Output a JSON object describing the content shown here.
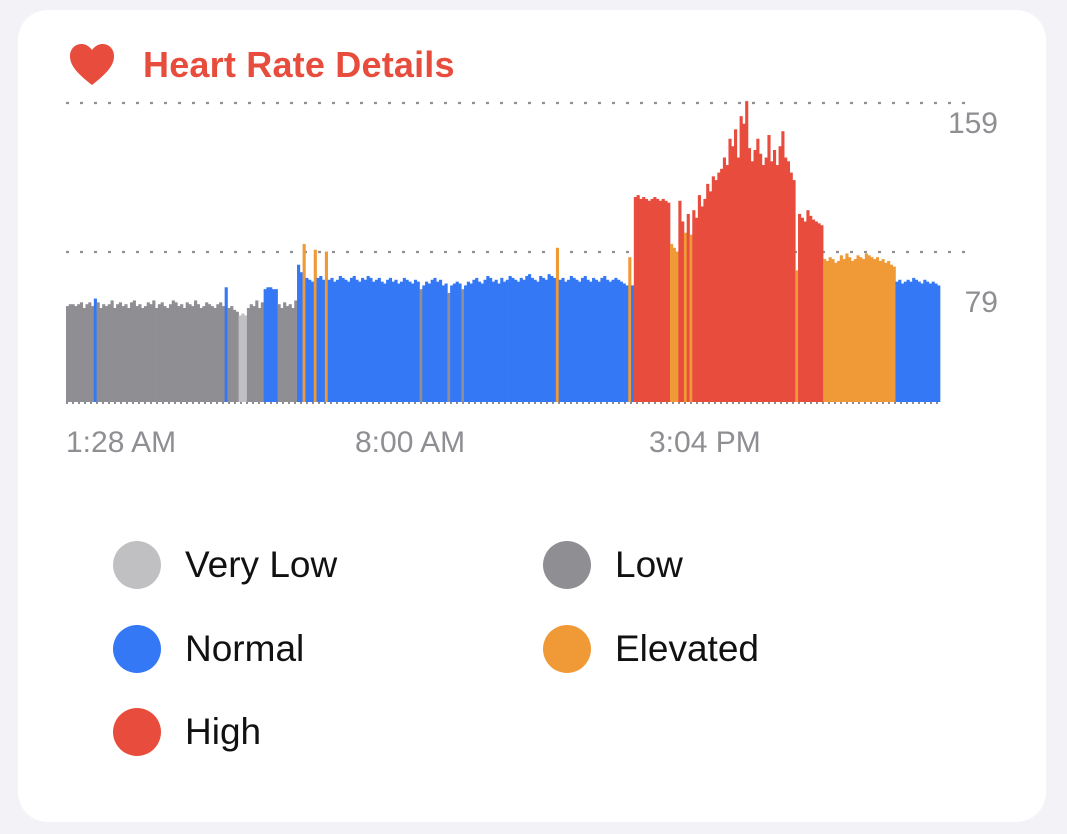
{
  "card": {
    "title": "Heart Rate Details"
  },
  "legend": [
    {
      "label": "Very Low",
      "color": "#c0c0c3",
      "key": "very_low"
    },
    {
      "label": "Low",
      "color": "#8e8e93",
      "key": "low"
    },
    {
      "label": "Normal",
      "color": "#3478f6",
      "key": "normal"
    },
    {
      "label": "Elevated",
      "color": "#f09a37",
      "key": "elevated"
    },
    {
      "label": "High",
      "color": "#e84c3d",
      "key": "high"
    }
  ],
  "chart_data": {
    "type": "bar",
    "title": "Heart Rate Details",
    "x_tick_labels": [
      "1:28 AM",
      "8:00 AM",
      "3:04 PM"
    ],
    "y_tick_labels": [
      "159",
      "79"
    ],
    "y_gridlines": [
      159,
      79
    ],
    "ylim": [
      0,
      175
    ],
    "grid": "dotted horizontal",
    "legend_position": "bottom",
    "category_colors": {
      "very_low": "#c0c0c3",
      "low": "#8e8e93",
      "normal": "#3478f6",
      "elevated": "#f09a37",
      "high": "#e84c3d"
    },
    "segments": [
      {
        "count": 10,
        "category": "low",
        "values": [
          51,
          52,
          52,
          51,
          52,
          53,
          50,
          52,
          53,
          51
        ]
      },
      {
        "count": 1,
        "category": "normal",
        "values": [
          55
        ]
      },
      {
        "count": 46,
        "category": "low",
        "values": [
          53,
          50,
          52,
          51,
          52,
          54,
          50,
          52,
          53,
          51,
          52,
          50,
          53,
          54,
          51,
          52,
          50,
          51,
          53,
          52,
          54,
          50,
          52,
          53,
          51,
          50,
          52,
          54,
          53,
          51,
          52,
          50,
          53,
          52,
          51,
          54,
          52,
          50,
          51,
          53,
          52,
          51,
          50,
          52,
          53,
          51
        ]
      },
      {
        "count": 1,
        "category": "normal",
        "values": [
          61
        ]
      },
      {
        "count": 4,
        "category": "low",
        "values": [
          50,
          51,
          49,
          48
        ]
      },
      {
        "count": 3,
        "category": "very_low",
        "values": [
          46,
          47,
          46
        ]
      },
      {
        "count": 6,
        "category": "low",
        "values": [
          50,
          52,
          51,
          54,
          50,
          53
        ]
      },
      {
        "count": 5,
        "category": "normal",
        "values": [
          60,
          61,
          61,
          60,
          60
        ]
      },
      {
        "count": 7,
        "category": "low",
        "values": [
          52,
          50,
          53,
          51,
          52,
          50,
          54
        ]
      },
      {
        "count": 2,
        "category": "normal",
        "values": [
          73,
          69
        ]
      },
      {
        "count": 1,
        "category": "elevated",
        "values": [
          84
        ]
      },
      {
        "count": 3,
        "category": "normal",
        "values": [
          66,
          65,
          64
        ]
      },
      {
        "count": 1,
        "category": "elevated",
        "values": [
          81
        ]
      },
      {
        "count": 3,
        "category": "normal",
        "values": [
          66,
          67,
          65
        ]
      },
      {
        "count": 1,
        "category": "elevated",
        "values": [
          80
        ]
      },
      {
        "count": 33,
        "category": "normal",
        "values": [
          65,
          66,
          64,
          65,
          67,
          66,
          65,
          64,
          66,
          67,
          65,
          64,
          66,
          65,
          67,
          66,
          64,
          65,
          66,
          64,
          63,
          65,
          66,
          64,
          65,
          63,
          64,
          66,
          65,
          64,
          63,
          65,
          64
        ]
      },
      {
        "count": 1,
        "category": "low",
        "values": [
          60
        ]
      },
      {
        "count": 9,
        "category": "normal",
        "values": [
          62,
          64,
          63,
          65,
          66,
          64,
          65,
          62,
          63
        ]
      },
      {
        "count": 1,
        "category": "low",
        "values": [
          58
        ]
      },
      {
        "count": 4,
        "category": "normal",
        "values": [
          62,
          63,
          64,
          63
        ]
      },
      {
        "count": 1,
        "category": "low",
        "values": [
          60
        ]
      },
      {
        "count": 33,
        "category": "normal",
        "values": [
          62,
          64,
          63,
          65,
          66,
          64,
          63,
          65,
          67,
          66,
          64,
          65,
          63,
          66,
          64,
          65,
          67,
          66,
          65,
          64,
          66,
          65,
          67,
          68,
          66,
          65,
          64,
          67,
          66,
          65,
          68,
          67,
          66
        ]
      },
      {
        "count": 1,
        "category": "elevated",
        "values": [
          82
        ]
      },
      {
        "count": 25,
        "category": "normal",
        "values": [
          65,
          66,
          64,
          65,
          67,
          66,
          65,
          64,
          66,
          67,
          65,
          64,
          66,
          65,
          64,
          66,
          67,
          65,
          64,
          65,
          66,
          65,
          64,
          63,
          62
        ]
      },
      {
        "count": 1,
        "category": "elevated",
        "values": [
          77
        ]
      },
      {
        "count": 1,
        "category": "normal",
        "values": [
          62
        ]
      },
      {
        "count": 13,
        "category": "high",
        "values": [
          109,
          110,
          108,
          109,
          108,
          107,
          108,
          109,
          108,
          107,
          108,
          107,
          106
        ]
      },
      {
        "count": 3,
        "category": "elevated",
        "values": [
          84,
          82,
          80
        ]
      },
      {
        "count": 2,
        "category": "high",
        "values": [
          107,
          96
        ]
      },
      {
        "count": 1,
        "category": "elevated",
        "values": [
          90
        ]
      },
      {
        "count": 1,
        "category": "high",
        "values": [
          100
        ]
      },
      {
        "count": 1,
        "category": "elevated",
        "values": [
          89
        ]
      },
      {
        "count": 37,
        "category": "high",
        "values": [
          102,
          98,
          110,
          104,
          108,
          116,
          112,
          120,
          118,
          122,
          124,
          130,
          126,
          140,
          136,
          145,
          130,
          152,
          148,
          160,
          135,
          128,
          134,
          140,
          132,
          126,
          130,
          142,
          128,
          134,
          126,
          136,
          144,
          130,
          128,
          122,
          118
        ]
      },
      {
        "count": 1,
        "category": "elevated",
        "values": [
          70
        ]
      },
      {
        "count": 9,
        "category": "high",
        "values": [
          100,
          98,
          96,
          102,
          99,
          97,
          96,
          95,
          94
        ]
      },
      {
        "count": 26,
        "category": "elevated",
        "values": [
          76,
          75,
          77,
          76,
          74,
          75,
          78,
          76,
          79,
          77,
          75,
          76,
          78,
          77,
          76,
          79,
          78,
          77,
          76,
          77,
          75,
          76,
          74,
          75,
          73,
          72
        ]
      },
      {
        "count": 16,
        "category": "normal",
        "values": [
          64,
          65,
          63,
          64,
          65,
          64,
          66,
          65,
          64,
          63,
          65,
          64,
          63,
          64,
          63,
          62
        ]
      }
    ]
  }
}
